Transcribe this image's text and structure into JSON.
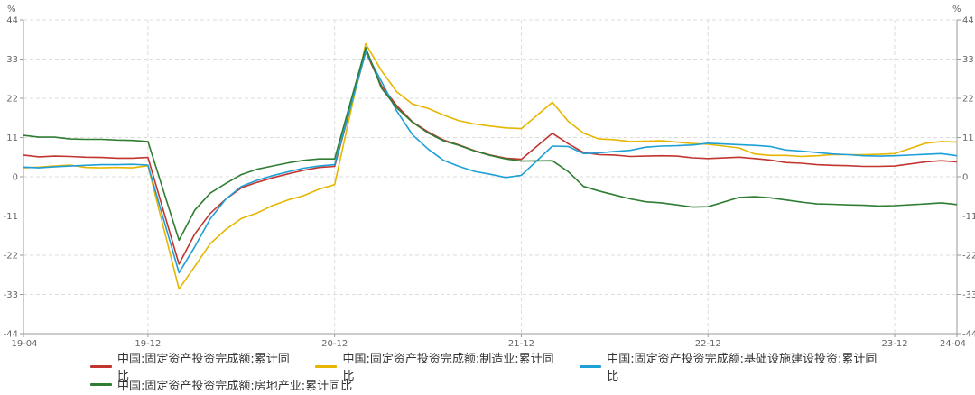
{
  "chart_data": {
    "type": "line",
    "unit_left": "%",
    "unit_right": "%",
    "ylim": [
      -44,
      44
    ],
    "y_ticks": [
      44,
      33,
      22,
      11,
      0,
      -11,
      -22,
      -33,
      -44
    ],
    "x_tick_labels": [
      "19-04",
      "19-12",
      "20-12",
      "21-12",
      "22-12",
      "23-12",
      "24-04"
    ],
    "x_tick_index": [
      0,
      8,
      20,
      32,
      44,
      56,
      60
    ],
    "grid": true,
    "legend_position": "bottom",
    "x": [
      "2019-04",
      "2019-05",
      "2019-06",
      "2019-07",
      "2019-08",
      "2019-09",
      "2019-10",
      "2019-11",
      "2019-12",
      "2020-02",
      "2020-03",
      "2020-04",
      "2020-05",
      "2020-06",
      "2020-07",
      "2020-08",
      "2020-09",
      "2020-10",
      "2020-11",
      "2020-12",
      "2021-02",
      "2021-03",
      "2021-04",
      "2021-05",
      "2021-06",
      "2021-07",
      "2021-08",
      "2021-09",
      "2021-10",
      "2021-11",
      "2021-12",
      "2022-02",
      "2022-03",
      "2022-04",
      "2022-05",
      "2022-06",
      "2022-07",
      "2022-08",
      "2022-09",
      "2022-10",
      "2022-11",
      "2022-12",
      "2023-02",
      "2023-03",
      "2023-04",
      "2023-05",
      "2023-06",
      "2023-07",
      "2023-08",
      "2023-09",
      "2023-10",
      "2023-11",
      "2023-12",
      "2024-02",
      "2024-03",
      "2024-04"
    ],
    "x_pos": [
      0,
      1,
      2,
      3,
      4,
      5,
      6,
      7,
      8,
      10,
      11,
      12,
      13,
      14,
      15,
      16,
      17,
      18,
      19,
      20,
      22,
      23,
      24,
      25,
      26,
      27,
      28,
      29,
      30,
      31,
      32,
      34,
      35,
      36,
      37,
      38,
      39,
      40,
      41,
      42,
      43,
      44,
      46,
      47,
      48,
      49,
      50,
      51,
      52,
      53,
      54,
      55,
      56,
      58,
      59,
      60
    ],
    "series": [
      {
        "name": "中国:固定资产投资完成额:累计同比",
        "color": "#c23531",
        "values": [
          6.1,
          5.6,
          5.8,
          5.7,
          5.5,
          5.4,
          5.2,
          5.2,
          5.4,
          -24.5,
          -16.1,
          -10.3,
          -6.3,
          -3.1,
          -1.6,
          -0.3,
          0.8,
          1.8,
          2.6,
          2.9,
          35.0,
          25.6,
          19.9,
          15.4,
          12.6,
          10.3,
          8.9,
          7.3,
          6.1,
          5.2,
          4.9,
          12.2,
          9.3,
          6.8,
          6.2,
          6.1,
          5.7,
          5.8,
          5.9,
          5.8,
          5.3,
          5.1,
          5.5,
          5.1,
          4.7,
          4.0,
          3.8,
          3.4,
          3.2,
          3.1,
          2.9,
          2.9,
          3.0,
          4.2,
          4.5,
          4.2
        ]
      },
      {
        "name": "中国:固定资产投资完成额:制造业:累计同比",
        "color": "#e6b600",
        "values": [
          2.5,
          2.7,
          3.0,
          3.3,
          2.6,
          2.5,
          2.6,
          2.5,
          3.1,
          -31.5,
          -25.2,
          -18.8,
          -14.8,
          -11.7,
          -10.2,
          -8.1,
          -6.5,
          -5.3,
          -3.5,
          -2.2,
          37.3,
          29.8,
          23.8,
          20.4,
          19.2,
          17.3,
          15.7,
          14.8,
          14.2,
          13.7,
          13.5,
          20.9,
          15.6,
          12.2,
          10.6,
          10.4,
          9.9,
          10.0,
          10.1,
          9.7,
          9.3,
          9.1,
          8.1,
          6.4,
          6.0,
          6.0,
          5.7,
          5.9,
          6.2,
          6.2,
          6.2,
          6.3,
          6.5,
          9.4,
          9.9,
          9.7
        ]
      },
      {
        "name": "中国:固定资产投资完成额:基础设施建设投资:累计同比",
        "color": "#1e9fd6",
        "values": [
          2.7,
          2.5,
          2.8,
          3.0,
          3.2,
          3.4,
          3.4,
          3.5,
          3.3,
          -26.9,
          -19.7,
          -11.8,
          -6.3,
          -2.7,
          -1.0,
          0.3,
          1.4,
          2.4,
          3.0,
          3.4,
          35.0,
          26.8,
          18.4,
          11.8,
          7.8,
          4.6,
          2.9,
          1.5,
          0.7,
          -0.2,
          0.4,
          8.6,
          8.5,
          6.5,
          6.7,
          7.1,
          7.4,
          8.3,
          8.6,
          8.7,
          8.9,
          9.4,
          9.0,
          8.8,
          8.5,
          7.5,
          7.2,
          6.8,
          6.4,
          6.2,
          5.9,
          5.8,
          5.9,
          6.3,
          6.5,
          5.9
        ]
      },
      {
        "name": "中国:固定资产投资完成额:房地产业:累计同比",
        "color": "#2e7d32",
        "values": [
          11.6,
          11.1,
          11.1,
          10.6,
          10.5,
          10.5,
          10.3,
          10.2,
          9.9,
          -17.8,
          -9.4,
          -4.6,
          -1.9,
          0.6,
          2.1,
          3.0,
          3.9,
          4.6,
          5.0,
          5.0,
          36.2,
          24.9,
          19.3,
          15.3,
          12.3,
          10.1,
          8.8,
          7.2,
          6.0,
          5.0,
          4.4,
          4.5,
          1.5,
          -2.7,
          -4.0,
          -5.1,
          -6.2,
          -7.0,
          -7.3,
          -7.9,
          -8.5,
          -8.4,
          -5.8,
          -5.6,
          -5.9,
          -6.5,
          -7.1,
          -7.6,
          -7.7,
          -7.9,
          -8.0,
          -8.2,
          -8.1,
          -7.6,
          -7.3,
          -7.8
        ]
      }
    ]
  }
}
